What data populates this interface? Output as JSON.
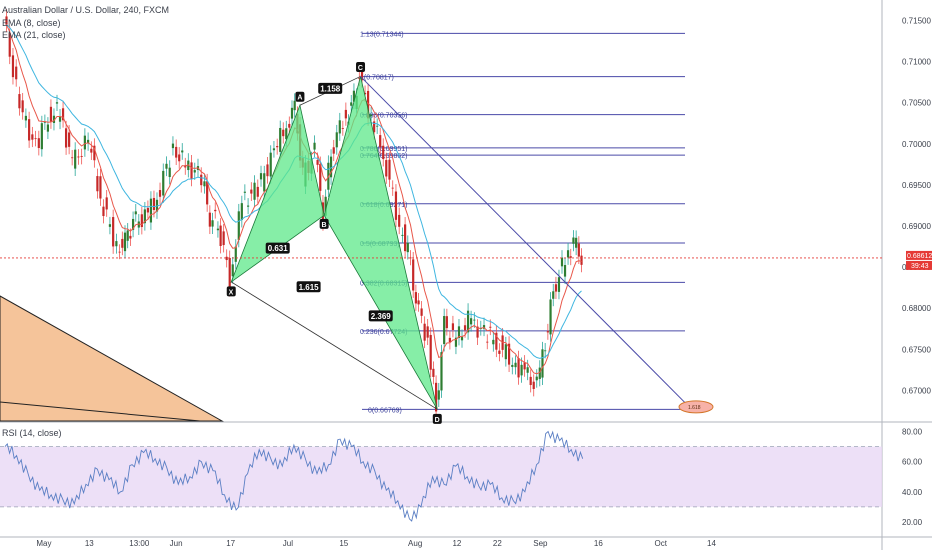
{
  "legend": {
    "symbol_line": "Australian Dollar / U.S. Dollar, 240, FXCM",
    "ema1_line": "EMA (8, close)",
    "ema2_line": "EMA (21, close)",
    "rsi_line": "RSI (14, close)"
  },
  "price_badge": {
    "value": "0.68612",
    "countdown": "39:43"
  },
  "pattern_points": {
    "X": "X",
    "A": "A",
    "B": "B",
    "C": "C",
    "D": "D"
  },
  "ratios": {
    "XA_XB": "0.631",
    "AB_AC": "1.158",
    "BC_BD": "2.369",
    "XA_XD": "1.615"
  },
  "harmonic_fib_label": "1.618",
  "chart_data": [
    {
      "type": "candlestick",
      "title": "Australian Dollar / U.S. Dollar, 240, FXCM",
      "y_ticks": [
        "0.71500",
        "0.71000",
        "0.70500",
        "0.70000",
        "0.69500",
        "0.69000",
        "0.68500",
        "0.68000",
        "0.67500",
        "0.67000"
      ],
      "ylim": [
        0.6664,
        0.7175
      ],
      "x_ticks": [
        "May",
        "13",
        "13:00",
        "Jun",
        "17",
        "Jul",
        "15",
        "Aug",
        "12",
        "22",
        "Sep",
        "16",
        "Oct",
        "14"
      ],
      "last_price": 0.68612,
      "series": [
        {
          "name": "EMA (8, close)",
          "color": "#e8574a"
        },
        {
          "name": "EMA (21, close)",
          "color": "#3fb6e0"
        }
      ],
      "path_points": [
        {
          "date": "Apr-22",
          "v": 0.7155
        },
        {
          "date": "Apr-26",
          "v": 0.7045
        },
        {
          "date": "Apr-30",
          "v": 0.6995
        },
        {
          "date": "May-03",
          "v": 0.7035
        },
        {
          "date": "May-06",
          "v": 0.704
        },
        {
          "date": "May-09",
          "v": 0.6975
        },
        {
          "date": "May-13",
          "v": 0.7005
        },
        {
          "date": "May-16",
          "v": 0.6935
        },
        {
          "date": "May-20",
          "v": 0.6875
        },
        {
          "date": "May-22",
          "v": 0.688
        },
        {
          "date": "May-24",
          "v": 0.6905
        },
        {
          "date": "May-27",
          "v": 0.691
        },
        {
          "date": "May-30",
          "v": 0.6935
        },
        {
          "date": "Jun-03",
          "v": 0.6995
        },
        {
          "date": "Jun-06",
          "v": 0.6975
        },
        {
          "date": "Jun-10",
          "v": 0.696
        },
        {
          "date": "Jun-12",
          "v": 0.691
        },
        {
          "date": "Jun-14",
          "v": 0.6905
        },
        {
          "date": "Jun-17",
          "v": 0.6835
        },
        {
          "date": "Jun-20",
          "v": 0.693
        },
        {
          "date": "Jun-24",
          "v": 0.6945
        },
        {
          "date": "Jun-28",
          "v": 0.699
        },
        {
          "date": "Jul-01",
          "v": 0.7025
        },
        {
          "date": "Jul-03",
          "v": 0.7045
        },
        {
          "date": "Jul-05",
          "v": 0.696
        },
        {
          "date": "Jul-08",
          "v": 0.699
        },
        {
          "date": "Jul-10",
          "v": 0.6915
        },
        {
          "date": "Jul-12",
          "v": 0.699
        },
        {
          "date": "Jul-15",
          "v": 0.703
        },
        {
          "date": "Jul-17",
          "v": 0.704
        },
        {
          "date": "Jul-19",
          "v": 0.7082
        },
        {
          "date": "Jul-22",
          "v": 0.703
        },
        {
          "date": "Jul-25",
          "v": 0.699
        },
        {
          "date": "Jul-29",
          "v": 0.69
        },
        {
          "date": "Jul-31",
          "v": 0.687
        },
        {
          "date": "Aug-02",
          "v": 0.681
        },
        {
          "date": "Aug-05",
          "v": 0.676
        },
        {
          "date": "Aug-07",
          "v": 0.6677
        },
        {
          "date": "Aug-09",
          "v": 0.678
        },
        {
          "date": "Aug-12",
          "v": 0.676
        },
        {
          "date": "Aug-15",
          "v": 0.6785
        },
        {
          "date": "Aug-19",
          "v": 0.677
        },
        {
          "date": "Aug-22",
          "v": 0.676
        },
        {
          "date": "Aug-26",
          "v": 0.6735
        },
        {
          "date": "Aug-29",
          "v": 0.672
        },
        {
          "date": "Sep-01",
          "v": 0.6705
        },
        {
          "date": "Sep-03",
          "v": 0.676
        },
        {
          "date": "Sep-05",
          "v": 0.682
        },
        {
          "date": "Sep-08",
          "v": 0.686
        },
        {
          "date": "Sep-10",
          "v": 0.688
        },
        {
          "date": "Sep-12",
          "v": 0.6861
        }
      ],
      "fib_levels": [
        {
          "ratio": "1.13",
          "price": "0.71344"
        },
        {
          "ratio": "1",
          "price": "0.70817"
        },
        {
          "ratio": "0.886",
          "price": "0.70356"
        },
        {
          "ratio": "0.786",
          "price": "0.69951"
        },
        {
          "ratio": "0.764",
          "price": "0.69862"
        },
        {
          "ratio": "0.618",
          "price": "0.69271"
        },
        {
          "ratio": "0.5",
          "price": "0.68793"
        },
        {
          "ratio": "0.382",
          "price": "0.68315"
        },
        {
          "ratio": "0.236",
          "price": "0.67724"
        },
        {
          "ratio": "0",
          "price": "0.66769"
        }
      ],
      "harmonic_pattern": {
        "X": {
          "date": "Jun-17",
          "price": 0.6832
        },
        "A": {
          "date": "Jul-04",
          "price": 0.7047
        },
        "B": {
          "date": "Jul-10",
          "price": 0.6913
        },
        "C": {
          "date": "Jul-19",
          "price": 0.7082
        },
        "D": {
          "date": "Aug-07",
          "price": 0.6677
        }
      }
    },
    {
      "type": "line",
      "title": "RSI (14, close)",
      "ylim": [
        10,
        85
      ],
      "y_ticks": [
        "80.00",
        "60.00",
        "40.00",
        "20.00"
      ],
      "bands": [
        30,
        70
      ],
      "series": [
        {
          "name": "RSI (14, close)",
          "color": "#5b7fc4",
          "values": [
            70,
            64,
            52,
            41,
            38,
            35,
            32,
            45,
            55,
            48,
            40,
            58,
            66,
            62,
            56,
            45,
            50,
            60,
            54,
            38,
            28,
            52,
            68,
            62,
            57,
            71,
            62,
            52,
            58,
            75,
            70,
            60,
            54,
            41,
            34,
            22,
            30,
            50,
            45,
            57,
            50,
            44,
            45,
            36,
            34,
            40,
            58,
            80,
            74,
            68,
            62
          ]
        }
      ]
    }
  ]
}
